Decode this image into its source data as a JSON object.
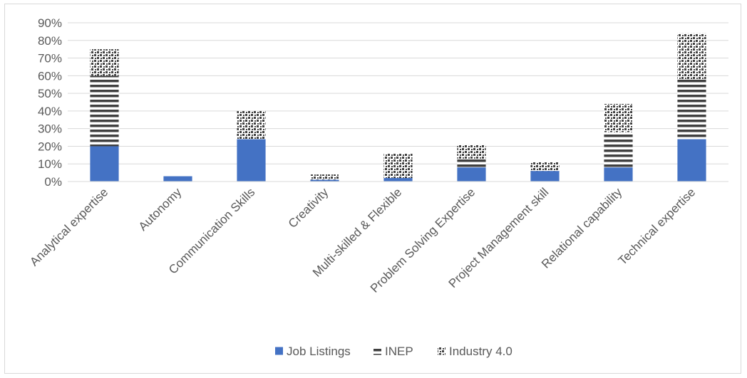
{
  "chart_data": {
    "type": "bar",
    "stacked": true,
    "title": "",
    "xlabel": "",
    "ylabel": "",
    "ylim": [
      0,
      0.9
    ],
    "ytick_step": 0.1,
    "ytick_format": "percent",
    "grid": true,
    "legend_position": "bottom",
    "categories": [
      "Analytical expertise",
      "Autonomy",
      "Communication Skills",
      "Creativity",
      "Multi-skilled & Flexible",
      "Problem Solving Expertise",
      "Project Management skill",
      "Relational capability",
      "Technical expertise"
    ],
    "series": [
      {
        "name": "Job Listings",
        "pattern": "solid",
        "color": "#4472c4",
        "values": [
          0.2,
          0.03,
          0.24,
          0.01,
          0.02,
          0.08,
          0.06,
          0.08,
          0.24
        ]
      },
      {
        "name": "INEP",
        "pattern": "horizontal-stripes",
        "color": "#404040",
        "values": [
          0.4,
          0.0,
          0.0,
          0.0,
          0.0,
          0.05,
          0.0,
          0.2,
          0.34
        ]
      },
      {
        "name": "Industry 4.0",
        "pattern": "checker-dots",
        "color": "#404040",
        "values": [
          0.15,
          0.0,
          0.16,
          0.03,
          0.14,
          0.08,
          0.05,
          0.16,
          0.26
        ]
      }
    ]
  }
}
